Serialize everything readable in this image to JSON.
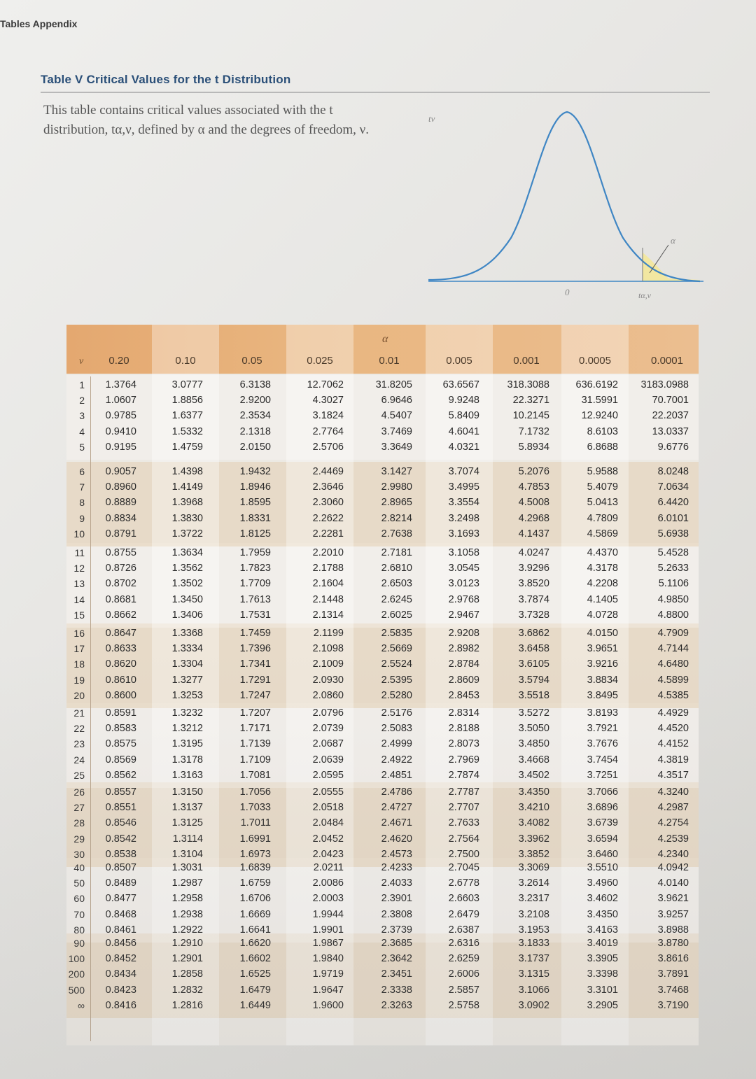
{
  "running_head": "Tables Appendix",
  "table_title": "Table V  Critical Values for the t Distribution",
  "caption": "This table contains critical values associated with the t distribution, tα,ν, defined by α and the degrees of freedom, ν.",
  "figure": {
    "t_label": "tν",
    "zero_label": "0",
    "tail_label": "tα,ν",
    "alpha_label": "α"
  },
  "table": {
    "alpha_header": "α",
    "nu_header": "ν",
    "columns": [
      "0.20",
      "0.10",
      "0.05",
      "0.025",
      "0.01",
      "0.005",
      "0.001",
      "0.0005",
      "0.0001"
    ],
    "rows": [
      {
        "df": "1",
        "values": [
          "1.3764",
          "3.0777",
          "6.3138",
          "12.7062",
          "31.8205",
          "63.6567",
          "318.3088",
          "636.6192",
          "3183.0988"
        ]
      },
      {
        "df": "2",
        "values": [
          "1.0607",
          "1.8856",
          "2.9200",
          "4.3027",
          "6.9646",
          "9.9248",
          "22.3271",
          "31.5991",
          "70.7001"
        ]
      },
      {
        "df": "3",
        "values": [
          "0.9785",
          "1.6377",
          "2.3534",
          "3.1824",
          "4.5407",
          "5.8409",
          "10.2145",
          "12.9240",
          "22.2037"
        ]
      },
      {
        "df": "4",
        "values": [
          "0.9410",
          "1.5332",
          "2.1318",
          "2.7764",
          "3.7469",
          "4.6041",
          "7.1732",
          "8.6103",
          "13.0337"
        ]
      },
      {
        "df": "5",
        "values": [
          "0.9195",
          "1.4759",
          "2.0150",
          "2.5706",
          "3.3649",
          "4.0321",
          "5.8934",
          "6.8688",
          "9.6776"
        ]
      },
      {
        "df": "6",
        "values": [
          "0.9057",
          "1.4398",
          "1.9432",
          "2.4469",
          "3.1427",
          "3.7074",
          "5.2076",
          "5.9588",
          "8.0248"
        ]
      },
      {
        "df": "7",
        "values": [
          "0.8960",
          "1.4149",
          "1.8946",
          "2.3646",
          "2.9980",
          "3.4995",
          "4.7853",
          "5.4079",
          "7.0634"
        ]
      },
      {
        "df": "8",
        "values": [
          "0.8889",
          "1.3968",
          "1.8595",
          "2.3060",
          "2.8965",
          "3.3554",
          "4.5008",
          "5.0413",
          "6.4420"
        ]
      },
      {
        "df": "9",
        "values": [
          "0.8834",
          "1.3830",
          "1.8331",
          "2.2622",
          "2.8214",
          "3.2498",
          "4.2968",
          "4.7809",
          "6.0101"
        ]
      },
      {
        "df": "10",
        "values": [
          "0.8791",
          "1.3722",
          "1.8125",
          "2.2281",
          "2.7638",
          "3.1693",
          "4.1437",
          "4.5869",
          "5.6938"
        ]
      },
      {
        "df": "11",
        "values": [
          "0.8755",
          "1.3634",
          "1.7959",
          "2.2010",
          "2.7181",
          "3.1058",
          "4.0247",
          "4.4370",
          "5.4528"
        ]
      },
      {
        "df": "12",
        "values": [
          "0.8726",
          "1.3562",
          "1.7823",
          "2.1788",
          "2.6810",
          "3.0545",
          "3.9296",
          "4.3178",
          "5.2633"
        ]
      },
      {
        "df": "13",
        "values": [
          "0.8702",
          "1.3502",
          "1.7709",
          "2.1604",
          "2.6503",
          "3.0123",
          "3.8520",
          "4.2208",
          "5.1106"
        ]
      },
      {
        "df": "14",
        "values": [
          "0.8681",
          "1.3450",
          "1.7613",
          "2.1448",
          "2.6245",
          "2.9768",
          "3.7874",
          "4.1405",
          "4.9850"
        ]
      },
      {
        "df": "15",
        "values": [
          "0.8662",
          "1.3406",
          "1.7531",
          "2.1314",
          "2.6025",
          "2.9467",
          "3.7328",
          "4.0728",
          "4.8800"
        ]
      },
      {
        "df": "16",
        "values": [
          "0.8647",
          "1.3368",
          "1.7459",
          "2.1199",
          "2.5835",
          "2.9208",
          "3.6862",
          "4.0150",
          "4.7909"
        ]
      },
      {
        "df": "17",
        "values": [
          "0.8633",
          "1.3334",
          "1.7396",
          "2.1098",
          "2.5669",
          "2.8982",
          "3.6458",
          "3.9651",
          "4.7144"
        ]
      },
      {
        "df": "18",
        "values": [
          "0.8620",
          "1.3304",
          "1.7341",
          "2.1009",
          "2.5524",
          "2.8784",
          "3.6105",
          "3.9216",
          "4.6480"
        ]
      },
      {
        "df": "19",
        "values": [
          "0.8610",
          "1.3277",
          "1.7291",
          "2.0930",
          "2.5395",
          "2.8609",
          "3.5794",
          "3.8834",
          "4.5899"
        ]
      },
      {
        "df": "20",
        "values": [
          "0.8600",
          "1.3253",
          "1.7247",
          "2.0860",
          "2.5280",
          "2.8453",
          "3.5518",
          "3.8495",
          "4.5385"
        ]
      },
      {
        "df": "21",
        "values": [
          "0.8591",
          "1.3232",
          "1.7207",
          "2.0796",
          "2.5176",
          "2.8314",
          "3.5272",
          "3.8193",
          "4.4929"
        ]
      },
      {
        "df": "22",
        "values": [
          "0.8583",
          "1.3212",
          "1.7171",
          "2.0739",
          "2.5083",
          "2.8188",
          "3.5050",
          "3.7921",
          "4.4520"
        ]
      },
      {
        "df": "23",
        "values": [
          "0.8575",
          "1.3195",
          "1.7139",
          "2.0687",
          "2.4999",
          "2.8073",
          "3.4850",
          "3.7676",
          "4.4152"
        ]
      },
      {
        "df": "24",
        "values": [
          "0.8569",
          "1.3178",
          "1.7109",
          "2.0639",
          "2.4922",
          "2.7969",
          "3.4668",
          "3.7454",
          "4.3819"
        ]
      },
      {
        "df": "25",
        "values": [
          "0.8562",
          "1.3163",
          "1.7081",
          "2.0595",
          "2.4851",
          "2.7874",
          "3.4502",
          "3.7251",
          "4.3517"
        ]
      },
      {
        "df": "26",
        "values": [
          "0.8557",
          "1.3150",
          "1.7056",
          "2.0555",
          "2.4786",
          "2.7787",
          "3.4350",
          "3.7066",
          "4.3240"
        ]
      },
      {
        "df": "27",
        "values": [
          "0.8551",
          "1.3137",
          "1.7033",
          "2.0518",
          "2.4727",
          "2.7707",
          "3.4210",
          "3.6896",
          "4.2987"
        ]
      },
      {
        "df": "28",
        "values": [
          "0.8546",
          "1.3125",
          "1.7011",
          "2.0484",
          "2.4671",
          "2.7633",
          "3.4082",
          "3.6739",
          "4.2754"
        ]
      },
      {
        "df": "29",
        "values": [
          "0.8542",
          "1.3114",
          "1.6991",
          "2.0452",
          "2.4620",
          "2.7564",
          "3.3962",
          "3.6594",
          "4.2539"
        ]
      },
      {
        "df": "30",
        "values": [
          "0.8538",
          "1.3104",
          "1.6973",
          "2.0423",
          "2.4573",
          "2.7500",
          "3.3852",
          "3.6460",
          "4.2340"
        ]
      },
      {
        "df": "40",
        "values": [
          "0.8507",
          "1.3031",
          "1.6839",
          "2.0211",
          "2.4233",
          "2.7045",
          "3.3069",
          "3.5510",
          "4.0942"
        ]
      },
      {
        "df": "50",
        "values": [
          "0.8489",
          "1.2987",
          "1.6759",
          "2.0086",
          "2.4033",
          "2.6778",
          "3.2614",
          "3.4960",
          "4.0140"
        ]
      },
      {
        "df": "60",
        "values": [
          "0.8477",
          "1.2958",
          "1.6706",
          "2.0003",
          "2.3901",
          "2.6603",
          "3.2317",
          "3.4602",
          "3.9621"
        ]
      },
      {
        "df": "70",
        "values": [
          "0.8468",
          "1.2938",
          "1.6669",
          "1.9944",
          "2.3808",
          "2.6479",
          "3.2108",
          "3.4350",
          "3.9257"
        ]
      },
      {
        "df": "80",
        "values": [
          "0.8461",
          "1.2922",
          "1.6641",
          "1.9901",
          "2.3739",
          "2.6387",
          "3.1953",
          "3.4163",
          "3.8988"
        ]
      },
      {
        "df": "90",
        "values": [
          "0.8456",
          "1.2910",
          "1.6620",
          "1.9867",
          "2.3685",
          "2.6316",
          "3.1833",
          "3.4019",
          "3.8780"
        ]
      },
      {
        "df": "100",
        "values": [
          "0.8452",
          "1.2901",
          "1.6602",
          "1.9840",
          "2.3642",
          "2.6259",
          "3.1737",
          "3.3905",
          "3.8616"
        ]
      },
      {
        "df": "200",
        "values": [
          "0.8434",
          "1.2858",
          "1.6525",
          "1.9719",
          "2.3451",
          "2.6006",
          "3.1315",
          "3.3398",
          "3.7891"
        ]
      },
      {
        "df": "500",
        "values": [
          "0.8423",
          "1.2832",
          "1.6479",
          "1.9647",
          "2.3338",
          "2.5857",
          "3.1066",
          "3.3101",
          "3.7468"
        ]
      },
      {
        "df": "∞",
        "values": [
          "0.8416",
          "1.2816",
          "1.6449",
          "1.9600",
          "2.3263",
          "2.5758",
          "3.0902",
          "3.2905",
          "3.7190"
        ]
      }
    ]
  },
  "colors": {
    "title": "#2a4f78",
    "curve": "#3f86c4",
    "tail_fill": "#f3e79a",
    "header_band": "#e9b680",
    "band_dark": "#e3c7a6"
  },
  "icons": [
    "text-cursor-icon"
  ]
}
